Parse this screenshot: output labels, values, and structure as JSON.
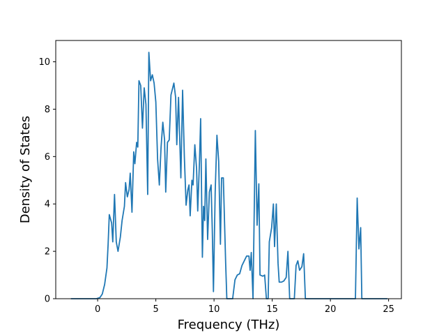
{
  "chart_data": {
    "type": "line",
    "title": "",
    "xlabel": "Frequency (THz)",
    "ylabel": "Density of States",
    "xlim": [
      -3.6,
      26.1
    ],
    "ylim": [
      0,
      10.9
    ],
    "grid": false,
    "legend": "none",
    "x_ticks": [
      0,
      5,
      10,
      15,
      20,
      25
    ],
    "y_ticks": [
      0,
      2,
      4,
      6,
      8,
      10
    ],
    "series": [
      {
        "color": "#1f77b4",
        "points": [
          [
            -2.3,
            0
          ],
          [
            -0.1,
            0
          ],
          [
            0.2,
            0.05
          ],
          [
            0.4,
            0.2
          ],
          [
            0.6,
            0.6
          ],
          [
            0.8,
            1.3
          ],
          [
            0.9,
            2.3
          ],
          [
            1.0,
            3.55
          ],
          [
            1.2,
            3.2
          ],
          [
            1.3,
            2.4
          ],
          [
            1.45,
            4.4
          ],
          [
            1.6,
            2.4
          ],
          [
            1.75,
            2.0
          ],
          [
            1.95,
            2.6
          ],
          [
            2.1,
            3.3
          ],
          [
            2.3,
            3.9
          ],
          [
            2.4,
            4.9
          ],
          [
            2.55,
            4.3
          ],
          [
            2.7,
            4.6
          ],
          [
            2.8,
            5.3
          ],
          [
            2.95,
            3.65
          ],
          [
            3.1,
            6.2
          ],
          [
            3.2,
            5.7
          ],
          [
            3.35,
            6.6
          ],
          [
            3.45,
            6.4
          ],
          [
            3.55,
            9.2
          ],
          [
            3.7,
            9.0
          ],
          [
            3.85,
            7.2
          ],
          [
            4.0,
            8.9
          ],
          [
            4.15,
            8.2
          ],
          [
            4.3,
            4.4
          ],
          [
            4.4,
            10.4
          ],
          [
            4.55,
            9.2
          ],
          [
            4.7,
            9.45
          ],
          [
            4.85,
            9.1
          ],
          [
            5.0,
            8.3
          ],
          [
            5.15,
            5.9
          ],
          [
            5.3,
            4.8
          ],
          [
            5.45,
            6.4
          ],
          [
            5.6,
            7.45
          ],
          [
            5.75,
            6.7
          ],
          [
            5.85,
            4.5
          ],
          [
            6.0,
            6.6
          ],
          [
            6.15,
            6.7
          ],
          [
            6.3,
            8.6
          ],
          [
            6.55,
            9.1
          ],
          [
            6.7,
            8.5
          ],
          [
            6.8,
            6.5
          ],
          [
            6.95,
            8.5
          ],
          [
            7.05,
            6.8
          ],
          [
            7.15,
            5.1
          ],
          [
            7.3,
            8.8
          ],
          [
            7.45,
            6.0
          ],
          [
            7.6,
            3.95
          ],
          [
            7.75,
            4.6
          ],
          [
            7.85,
            4.8
          ],
          [
            7.95,
            3.5
          ],
          [
            8.1,
            5.0
          ],
          [
            8.2,
            4.8
          ],
          [
            8.35,
            6.5
          ],
          [
            8.5,
            5.5
          ],
          [
            8.6,
            3.7
          ],
          [
            8.75,
            5.8
          ],
          [
            8.85,
            7.6
          ],
          [
            9.0,
            1.75
          ],
          [
            9.1,
            3.9
          ],
          [
            9.2,
            3.3
          ],
          [
            9.3,
            5.9
          ],
          [
            9.45,
            2.5
          ],
          [
            9.6,
            4.5
          ],
          [
            9.75,
            4.8
          ],
          [
            9.85,
            2.9
          ],
          [
            9.95,
            0.3
          ],
          [
            10.1,
            4.5
          ],
          [
            10.25,
            6.9
          ],
          [
            10.4,
            5.8
          ],
          [
            10.55,
            2.3
          ],
          [
            10.65,
            5.1
          ],
          [
            10.8,
            5.1
          ],
          [
            11.0,
            1.5
          ],
          [
            11.1,
            0
          ],
          [
            11.6,
            0
          ],
          [
            11.8,
            0.8
          ],
          [
            12.0,
            1.0
          ],
          [
            12.2,
            1.05
          ],
          [
            12.4,
            1.4
          ],
          [
            12.6,
            1.6
          ],
          [
            12.8,
            1.8
          ],
          [
            13.0,
            1.8
          ],
          [
            13.1,
            1.2
          ],
          [
            13.2,
            1.95
          ],
          [
            13.35,
            0
          ],
          [
            13.55,
            7.1
          ],
          [
            13.7,
            3.1
          ],
          [
            13.85,
            4.85
          ],
          [
            13.95,
            1.0
          ],
          [
            14.2,
            0.95
          ],
          [
            14.35,
            1.0
          ],
          [
            14.5,
            0
          ],
          [
            14.65,
            0
          ],
          [
            14.75,
            2.4
          ],
          [
            14.95,
            3.0
          ],
          [
            15.1,
            4.0
          ],
          [
            15.2,
            2.2
          ],
          [
            15.35,
            4.0
          ],
          [
            15.5,
            1.5
          ],
          [
            15.6,
            0.7
          ],
          [
            15.8,
            0.7
          ],
          [
            16.0,
            0.75
          ],
          [
            16.2,
            0.9
          ],
          [
            16.35,
            2.0
          ],
          [
            16.5,
            0
          ],
          [
            16.9,
            0
          ],
          [
            17.05,
            1.4
          ],
          [
            17.2,
            1.6
          ],
          [
            17.35,
            1.2
          ],
          [
            17.55,
            1.35
          ],
          [
            17.7,
            1.9
          ],
          [
            17.85,
            0
          ],
          [
            22.15,
            0
          ],
          [
            22.3,
            4.25
          ],
          [
            22.45,
            2.1
          ],
          [
            22.6,
            3.0
          ],
          [
            22.7,
            0
          ],
          [
            24.9,
            0
          ]
        ]
      }
    ]
  }
}
